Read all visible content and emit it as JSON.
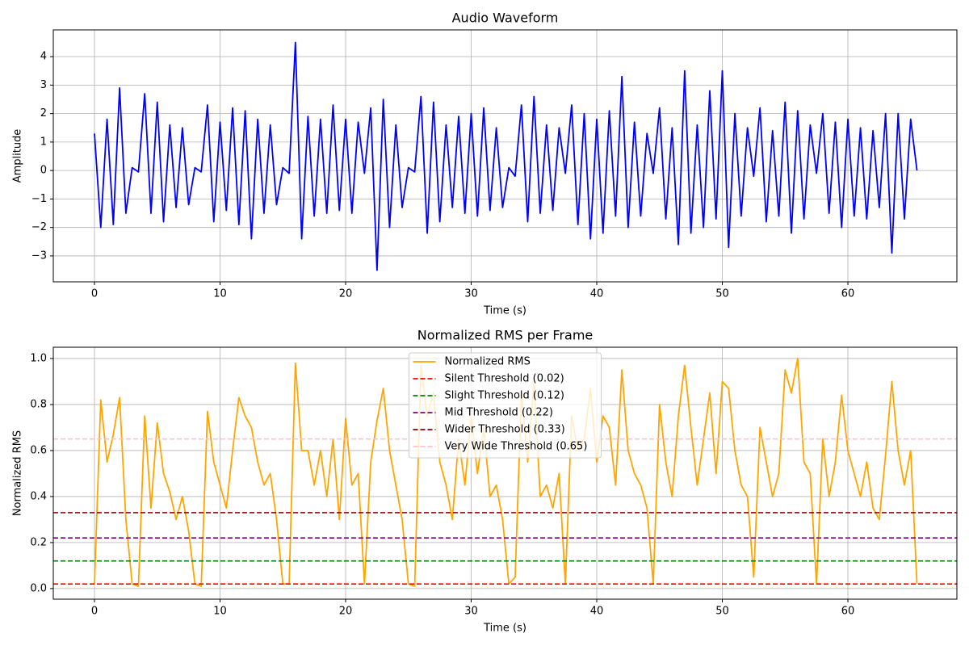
{
  "chart_data": [
    {
      "type": "line",
      "title": "Audio Waveform",
      "xlabel": "Time (s)",
      "ylabel": "Amplitude",
      "grid": true,
      "xlim": [
        -3.28,
        68.68
      ],
      "xticks": [
        0,
        10,
        20,
        30,
        40,
        50,
        60
      ],
      "ylim": [
        -3.91,
        4.94
      ],
      "yticks": [
        {
          "value": -3,
          "label": "−3"
        },
        {
          "value": -2,
          "label": "−2"
        },
        {
          "value": -1,
          "label": "−1"
        },
        0,
        1,
        2,
        3,
        4
      ],
      "x": [
        0,
        0.5,
        1,
        1.5,
        2,
        2.5,
        3,
        3.5,
        4,
        4.5,
        5,
        5.5,
        6,
        6.5,
        7,
        7.5,
        8,
        8.5,
        9,
        9.5,
        10,
        10.5,
        11,
        11.5,
        12,
        12.5,
        13,
        13.5,
        14,
        14.5,
        15,
        15.5,
        16,
        16.5,
        17,
        17.5,
        18,
        18.5,
        19,
        19.5,
        20,
        20.5,
        21,
        21.5,
        22,
        22.5,
        23,
        23.5,
        24,
        24.5,
        25,
        25.5,
        26,
        26.5,
        27,
        27.5,
        28,
        28.5,
        29,
        29.5,
        30,
        30.5,
        31,
        31.5,
        32,
        32.5,
        33,
        33.5,
        34,
        34.5,
        35,
        35.5,
        36,
        36.5,
        37,
        37.5,
        38,
        38.5,
        39,
        39.5,
        40,
        40.5,
        41,
        41.5,
        42,
        42.5,
        43,
        43.5,
        44,
        44.5,
        45,
        45.5,
        46,
        46.5,
        47,
        47.5,
        48,
        48.5,
        49,
        49.5,
        50,
        50.5,
        51,
        51.5,
        52,
        52.5,
        53,
        53.5,
        54,
        54.5,
        55,
        55.5,
        56,
        56.5,
        57,
        57.5,
        58,
        58.5,
        59,
        59.5,
        60,
        60.5,
        61,
        61.5,
        62,
        62.5,
        63,
        63.5,
        64,
        64.5,
        65,
        65.5
      ],
      "series": [
        {
          "color": "#0000ff",
          "values": [
            1.3,
            -2.0,
            1.8,
            -1.9,
            2.9,
            -1.5,
            0.1,
            -0.05,
            2.7,
            -1.5,
            2.4,
            -1.8,
            1.6,
            -1.3,
            1.5,
            -1.2,
            0.1,
            -0.05,
            2.3,
            -1.8,
            1.7,
            -1.4,
            2.2,
            -1.9,
            2.1,
            -2.4,
            1.8,
            -1.5,
            1.6,
            -1.2,
            0.1,
            -0.1,
            4.5,
            -2.4,
            1.9,
            -1.6,
            1.8,
            -1.5,
            2.3,
            -1.4,
            1.8,
            -1.5,
            1.7,
            -0.1,
            2.2,
            -3.5,
            2.5,
            -2.0,
            1.6,
            -1.3,
            0.1,
            -0.05,
            2.6,
            -2.2,
            2.4,
            -1.8,
            1.6,
            -1.3,
            1.9,
            -1.5,
            2.0,
            -1.6,
            2.2,
            -1.4,
            1.5,
            -1.3,
            0.1,
            -0.2,
            2.3,
            -1.8,
            2.6,
            -1.5,
            1.6,
            -1.4,
            1.5,
            -0.1,
            2.3,
            -1.9,
            2.0,
            -2.4,
            1.8,
            -2.2,
            2.1,
            -1.6,
            3.3,
            -2.0,
            1.7,
            -1.6,
            1.3,
            -0.1,
            2.2,
            -1.7,
            1.5,
            -2.6,
            3.5,
            -2.2,
            1.6,
            -2.0,
            2.8,
            -1.7,
            3.5,
            -2.7,
            2.0,
            -1.6,
            1.5,
            -0.2,
            2.2,
            -1.8,
            1.4,
            -1.6,
            2.4,
            -2.2,
            2.1,
            -1.7,
            1.6,
            -0.1,
            2.0,
            -1.5,
            1.7,
            -2.0,
            1.8,
            -1.6,
            1.5,
            -1.7,
            1.4,
            -1.3,
            2.0,
            -2.9,
            2.0,
            -1.7,
            1.8,
            0.0
          ]
        }
      ]
    },
    {
      "type": "line",
      "title": "Normalized RMS per Frame",
      "xlabel": "Time (s)",
      "ylabel": "Normalized RMS",
      "grid": true,
      "legend": "upper center",
      "xlim": [
        -3.28,
        68.68
      ],
      "xticks": [
        0,
        10,
        20,
        30,
        40,
        50,
        60
      ],
      "ylim": [
        -0.046,
        1.049
      ],
      "yticks": [
        {
          "value": 0,
          "label": "0.0"
        },
        0.2,
        0.4,
        0.6,
        0.8,
        {
          "value": 1,
          "label": "1.0"
        }
      ],
      "x": [
        0,
        0.5,
        1,
        1.5,
        2,
        2.5,
        3,
        3.5,
        4,
        4.5,
        5,
        5.5,
        6,
        6.5,
        7,
        7.5,
        8,
        8.5,
        9,
        9.5,
        10,
        10.5,
        11,
        11.5,
        12,
        12.5,
        13,
        13.5,
        14,
        14.5,
        15,
        15.5,
        16,
        16.5,
        17,
        17.5,
        18,
        18.5,
        19,
        19.5,
        20,
        20.5,
        21,
        21.5,
        22,
        22.5,
        23,
        23.5,
        24,
        24.5,
        25,
        25.5,
        26,
        26.5,
        27,
        27.5,
        28,
        28.5,
        29,
        29.5,
        30,
        30.5,
        31,
        31.5,
        32,
        32.5,
        33,
        33.5,
        34,
        34.5,
        35,
        35.5,
        36,
        36.5,
        37,
        37.5,
        38,
        38.5,
        39,
        39.5,
        40,
        40.5,
        41,
        41.5,
        42,
        42.5,
        43,
        43.5,
        44,
        44.5,
        45,
        45.5,
        46,
        46.5,
        47,
        47.5,
        48,
        48.5,
        49,
        49.5,
        50,
        50.5,
        51,
        51.5,
        52,
        52.5,
        53,
        53.5,
        54,
        54.5,
        55,
        55.5,
        56,
        56.5,
        57,
        57.5,
        58,
        58.5,
        59,
        59.5,
        60,
        60.5,
        61,
        61.5,
        62,
        62.5,
        63,
        63.5,
        64,
        64.5,
        65,
        65.5
      ],
      "series": [
        {
          "name": "Normalized RMS",
          "color": "#ffa500",
          "values": [
            0.02,
            0.82,
            0.55,
            0.67,
            0.83,
            0.3,
            0.02,
            0.01,
            0.75,
            0.35,
            0.72,
            0.5,
            0.42,
            0.3,
            0.4,
            0.25,
            0.02,
            0.01,
            0.77,
            0.55,
            0.45,
            0.35,
            0.6,
            0.83,
            0.75,
            0.7,
            0.55,
            0.45,
            0.5,
            0.3,
            0.02,
            0.02,
            0.98,
            0.6,
            0.6,
            0.45,
            0.6,
            0.4,
            0.65,
            0.3,
            0.74,
            0.45,
            0.5,
            0.02,
            0.55,
            0.73,
            0.87,
            0.6,
            0.45,
            0.3,
            0.02,
            0.01,
            0.97,
            0.75,
            0.85,
            0.55,
            0.45,
            0.3,
            0.65,
            0.45,
            0.75,
            0.5,
            0.7,
            0.4,
            0.45,
            0.3,
            0.02,
            0.05,
            0.85,
            0.55,
            0.9,
            0.4,
            0.45,
            0.35,
            0.5,
            0.02,
            0.75,
            0.6,
            0.65,
            0.87,
            0.55,
            0.75,
            0.7,
            0.45,
            0.95,
            0.6,
            0.5,
            0.45,
            0.35,
            0.02,
            0.8,
            0.55,
            0.4,
            0.75,
            0.97,
            0.7,
            0.45,
            0.65,
            0.85,
            0.5,
            0.9,
            0.87,
            0.6,
            0.45,
            0.4,
            0.05,
            0.7,
            0.55,
            0.4,
            0.5,
            0.95,
            0.85,
            1.0,
            0.55,
            0.5,
            0.02,
            0.65,
            0.4,
            0.55,
            0.84,
            0.6,
            0.5,
            0.4,
            0.55,
            0.35,
            0.3,
            0.58,
            0.9,
            0.6,
            0.45,
            0.6,
            0.02
          ]
        }
      ],
      "hlines": [
        {
          "name": "Silent Threshold (0.02)",
          "value": 0.02,
          "color": "#ff0000"
        },
        {
          "name": "Slight Threshold (0.12)",
          "value": 0.12,
          "color": "#008000"
        },
        {
          "name": "Mid Threshold (0.22)",
          "value": 0.22,
          "color": "#800080"
        },
        {
          "name": "Wider Threshold (0.33)",
          "value": 0.33,
          "color": "#8b0000"
        },
        {
          "name": "Very Wide Threshold (0.65)",
          "value": 0.65,
          "color": "#ffc0cb"
        }
      ]
    }
  ]
}
